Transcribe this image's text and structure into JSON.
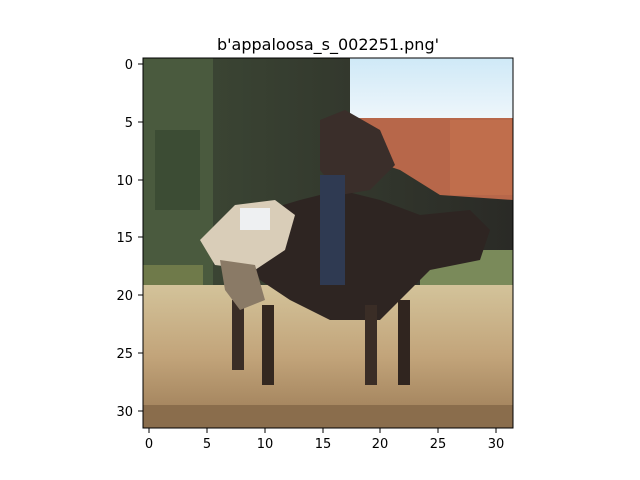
{
  "figure": {
    "title": "b'appaloosa_s_002251.png'"
  },
  "axes": {
    "x_ticks": [
      "0",
      "5",
      "10",
      "15",
      "20",
      "25",
      "30"
    ],
    "y_ticks": [
      "0",
      "5",
      "10",
      "15",
      "20",
      "25",
      "30"
    ]
  },
  "image": {
    "description": "pixelated photo of a dark horse with a rider in front of a red-roofed barn",
    "grid_size": 32
  }
}
